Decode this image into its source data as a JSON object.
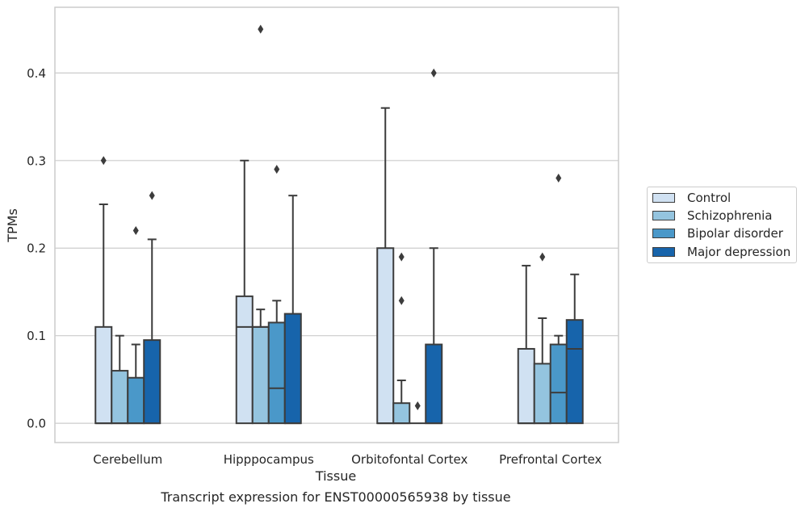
{
  "chart_data": {
    "type": "box",
    "xlabel": "Tissue",
    "ylabel": "TPMs",
    "ylim": [
      -0.022,
      0.475
    ],
    "yticks": [
      0.0,
      0.1,
      0.2,
      0.3,
      0.4
    ],
    "ytick_labels": [
      "0.0",
      "0.1",
      "0.2",
      "0.3",
      "0.4"
    ],
    "grid": true,
    "legend_position": "right, outside plot",
    "categories": [
      "Cerebellum",
      "Hipppocampus",
      "Orbitofontal Cortex",
      "Prefrontal Cortex"
    ],
    "series": [
      {
        "name": "Control",
        "color": "#d0e1f2",
        "boxes": [
          {
            "q1": 0.0,
            "median": 0.0,
            "q3": 0.11,
            "whisker_low": 0.0,
            "whisker_high": 0.25,
            "outliers": [
              0.3
            ]
          },
          {
            "q1": 0.0,
            "median": 0.11,
            "q3": 0.145,
            "whisker_low": 0.0,
            "whisker_high": 0.3,
            "outliers": []
          },
          {
            "q1": 0.0,
            "median": 0.0,
            "q3": 0.2,
            "whisker_low": 0.0,
            "whisker_high": 0.36,
            "outliers": []
          },
          {
            "q1": 0.0,
            "median": 0.0,
            "q3": 0.085,
            "whisker_low": 0.0,
            "whisker_high": 0.18,
            "outliers": []
          }
        ]
      },
      {
        "name": "Schizophrenia",
        "color": "#94c4df",
        "boxes": [
          {
            "q1": 0.0,
            "median": 0.0,
            "q3": 0.06,
            "whisker_low": 0.0,
            "whisker_high": 0.1,
            "outliers": []
          },
          {
            "q1": 0.0,
            "median": 0.11,
            "q3": 0.11,
            "whisker_low": 0.0,
            "whisker_high": 0.13,
            "outliers": [
              0.45
            ]
          },
          {
            "q1": 0.0,
            "median": 0.0,
            "q3": 0.023,
            "whisker_low": 0.0,
            "whisker_high": 0.049,
            "outliers": [
              0.14,
              0.19
            ]
          },
          {
            "q1": 0.0,
            "median": 0.0,
            "q3": 0.068,
            "whisker_low": 0.0,
            "whisker_high": 0.12,
            "outliers": [
              0.19
            ]
          }
        ]
      },
      {
        "name": "Bipolar disorder",
        "color": "#4a98c9",
        "boxes": [
          {
            "q1": 0.0,
            "median": 0.0,
            "q3": 0.052,
            "whisker_low": 0.0,
            "whisker_high": 0.09,
            "outliers": [
              0.22
            ]
          },
          {
            "q1": 0.0,
            "median": 0.04,
            "q3": 0.115,
            "whisker_low": 0.0,
            "whisker_high": 0.14,
            "outliers": [
              0.29
            ]
          },
          {
            "q1": 0.0,
            "median": 0.0,
            "q3": 0.0,
            "whisker_low": 0.0,
            "whisker_high": 0.0,
            "outliers": [
              0.02
            ]
          },
          {
            "q1": 0.0,
            "median": 0.035,
            "q3": 0.09,
            "whisker_low": 0.0,
            "whisker_high": 0.1,
            "outliers": [
              0.28
            ]
          }
        ]
      },
      {
        "name": "Major depression",
        "color": "#1764ab",
        "boxes": [
          {
            "q1": 0.0,
            "median": 0.0,
            "q3": 0.095,
            "whisker_low": 0.0,
            "whisker_high": 0.21,
            "outliers": [
              0.26
            ]
          },
          {
            "q1": 0.0,
            "median": 0.0,
            "q3": 0.125,
            "whisker_low": 0.0,
            "whisker_high": 0.26,
            "outliers": []
          },
          {
            "q1": 0.0,
            "median": 0.0,
            "q3": 0.09,
            "whisker_low": 0.0,
            "whisker_high": 0.2,
            "outliers": [
              0.4
            ]
          },
          {
            "q1": 0.0,
            "median": 0.085,
            "q3": 0.118,
            "whisker_low": 0.0,
            "whisker_high": 0.17,
            "outliers": []
          }
        ]
      }
    ]
  },
  "caption": "Transcript expression for ENST00000565938 by tissue",
  "colors": {
    "grid": "#cccccc",
    "axes_edge": "#cccccc",
    "box_edge": "#3c3c3c",
    "text": "#262626"
  }
}
